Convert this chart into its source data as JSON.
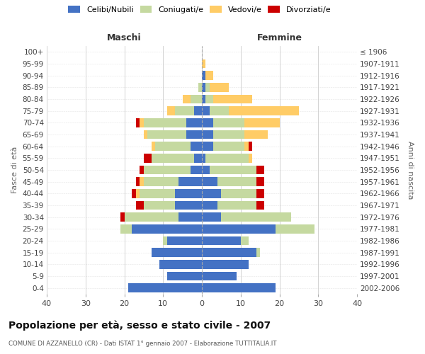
{
  "age_groups": [
    "0-4",
    "5-9",
    "10-14",
    "15-19",
    "20-24",
    "25-29",
    "30-34",
    "35-39",
    "40-44",
    "45-49",
    "50-54",
    "55-59",
    "60-64",
    "65-69",
    "70-74",
    "75-79",
    "80-84",
    "85-89",
    "90-94",
    "95-99",
    "100+"
  ],
  "birth_years": [
    "2002-2006",
    "1997-2001",
    "1992-1996",
    "1987-1991",
    "1982-1986",
    "1977-1981",
    "1972-1976",
    "1967-1971",
    "1962-1966",
    "1957-1961",
    "1952-1956",
    "1947-1951",
    "1942-1946",
    "1937-1941",
    "1932-1936",
    "1927-1931",
    "1922-1926",
    "1917-1921",
    "1912-1916",
    "1907-1911",
    "≤ 1906"
  ],
  "maschi": {
    "celibi": [
      19,
      9,
      11,
      13,
      9,
      18,
      6,
      7,
      7,
      6,
      3,
      2,
      3,
      4,
      4,
      2,
      0,
      0,
      0,
      0,
      0
    ],
    "coniugati": [
      0,
      0,
      0,
      0,
      1,
      3,
      14,
      8,
      9,
      9,
      12,
      11,
      9,
      10,
      11,
      5,
      3,
      1,
      0,
      0,
      0
    ],
    "vedovi": [
      0,
      0,
      0,
      0,
      0,
      0,
      0,
      0,
      1,
      1,
      0,
      0,
      1,
      1,
      1,
      2,
      2,
      0,
      0,
      0,
      0
    ],
    "divorziati": [
      0,
      0,
      0,
      0,
      0,
      0,
      1,
      2,
      1,
      1,
      1,
      2,
      0,
      0,
      1,
      0,
      0,
      0,
      0,
      0,
      0
    ]
  },
  "femmine": {
    "nubili": [
      19,
      9,
      12,
      14,
      10,
      19,
      5,
      4,
      5,
      4,
      2,
      1,
      3,
      3,
      3,
      2,
      1,
      1,
      1,
      0,
      0
    ],
    "coniugate": [
      0,
      0,
      0,
      1,
      2,
      10,
      18,
      10,
      9,
      10,
      12,
      11,
      8,
      8,
      8,
      5,
      2,
      1,
      0,
      0,
      0
    ],
    "vedove": [
      0,
      0,
      0,
      0,
      0,
      0,
      0,
      0,
      0,
      0,
      0,
      1,
      1,
      6,
      9,
      18,
      10,
      5,
      2,
      1,
      0
    ],
    "divorziate": [
      0,
      0,
      0,
      0,
      0,
      0,
      0,
      2,
      2,
      2,
      2,
      0,
      1,
      0,
      0,
      0,
      0,
      0,
      0,
      0,
      0
    ]
  },
  "colors": {
    "celibi_nubili": "#4472C4",
    "coniugati": "#C5D9A0",
    "vedovi": "#FFCC66",
    "divorziati": "#CC0000"
  },
  "title": "Popolazione per età, sesso e stato civile - 2007",
  "subtitle": "COMUNE DI AZZANELLO (CR) - Dati ISTAT 1° gennaio 2007 - Elaborazione TUTTITALIA.IT",
  "xlabel_left": "Maschi",
  "xlabel_right": "Femmine",
  "ylabel_left": "Fasce di età",
  "ylabel_right": "Anni di nascita",
  "xlim": 40,
  "background_color": "#ffffff",
  "grid_color": "#cccccc"
}
